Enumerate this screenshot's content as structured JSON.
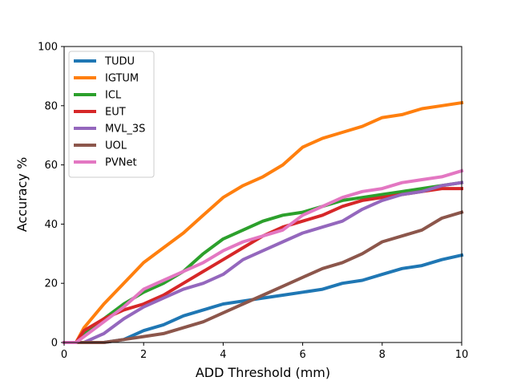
{
  "chart_data": {
    "type": "line",
    "title": "",
    "xlabel": "ADD Threshold (mm)",
    "ylabel": "Accuracy %",
    "xlim": [
      0,
      10
    ],
    "ylim": [
      0,
      100
    ],
    "xticks": [
      0,
      2,
      4,
      6,
      8,
      10
    ],
    "yticks": [
      0,
      20,
      40,
      60,
      80,
      100
    ],
    "grid": false,
    "legend_position": "top-left",
    "series": [
      {
        "name": "TUDU",
        "color": "#1f77b4",
        "x": [
          0,
          1,
          1.5,
          2,
          2.5,
          3,
          3.5,
          4,
          4.5,
          5,
          5.5,
          6,
          6.5,
          7,
          7.5,
          8,
          8.5,
          9,
          9.5,
          10
        ],
        "y": [
          0,
          0,
          1,
          4,
          6,
          9,
          11,
          13,
          14,
          15,
          16,
          17,
          18,
          20,
          21,
          23,
          25,
          26,
          28,
          29.5
        ]
      },
      {
        "name": "IGTUM",
        "color": "#ff7f0e",
        "x": [
          0,
          0.3,
          0.5,
          1,
          1.5,
          2,
          2.5,
          3,
          3.5,
          4,
          4.5,
          5,
          5.5,
          6,
          6.5,
          7,
          7.5,
          8,
          8.5,
          9,
          9.5,
          10
        ],
        "y": [
          0,
          0,
          5,
          13,
          20,
          27,
          32,
          37,
          43,
          49,
          53,
          56,
          60,
          66,
          69,
          71,
          73,
          76,
          77,
          79,
          80,
          81
        ]
      },
      {
        "name": "ICL",
        "color": "#2ca02c",
        "x": [
          0,
          0.3,
          0.5,
          1,
          1.5,
          2,
          2.5,
          3,
          3.5,
          4,
          4.5,
          5,
          5.5,
          6,
          6.5,
          7,
          7.5,
          8,
          8.5,
          9,
          9.5,
          10
        ],
        "y": [
          0,
          0,
          3,
          8,
          13,
          17,
          20,
          24,
          30,
          35,
          38,
          41,
          43,
          44,
          46,
          48,
          49,
          50,
          51,
          52,
          53,
          54
        ]
      },
      {
        "name": "EUT",
        "color": "#d62728",
        "x": [
          0,
          0.3,
          0.5,
          1,
          1.5,
          2,
          2.5,
          3,
          3.5,
          4,
          4.5,
          5,
          5.5,
          6,
          6.5,
          7,
          7.5,
          8,
          8.5,
          9,
          9.5,
          10
        ],
        "y": [
          0,
          0,
          4,
          8,
          11,
          13,
          16,
          20,
          24,
          28,
          32,
          36,
          39,
          41,
          43,
          46,
          48,
          49,
          50,
          51,
          52,
          52
        ]
      },
      {
        "name": "MVL_3S",
        "color": "#9467bd",
        "x": [
          0,
          0.5,
          1,
          1.5,
          2,
          2.5,
          3,
          3.5,
          4,
          4.5,
          5,
          5.5,
          6,
          6.5,
          7,
          7.5,
          8,
          8.5,
          9,
          9.5,
          10
        ],
        "y": [
          0,
          0,
          3,
          8,
          12,
          15,
          18,
          20,
          23,
          28,
          31,
          34,
          37,
          39,
          41,
          45,
          48,
          50,
          51,
          53,
          54
        ]
      },
      {
        "name": "UOL",
        "color": "#8c564b",
        "x": [
          0,
          1,
          1.5,
          2,
          2.5,
          3,
          3.5,
          4,
          4.5,
          5,
          5.5,
          6,
          6.5,
          7,
          7.5,
          8,
          8.5,
          9,
          9.5,
          10
        ],
        "y": [
          0,
          0,
          1,
          2,
          3,
          5,
          7,
          10,
          13,
          16,
          19,
          22,
          25,
          27,
          30,
          34,
          36,
          38,
          42,
          44
        ]
      },
      {
        "name": "PVNet",
        "color": "#e377c2",
        "x": [
          0,
          0.3,
          0.5,
          1,
          1.5,
          2,
          2.5,
          3,
          3.5,
          4,
          4.5,
          5,
          5.5,
          6,
          6.5,
          7,
          7.5,
          8,
          8.5,
          9,
          9.5,
          10
        ],
        "y": [
          0,
          0,
          2,
          7,
          12,
          18,
          21,
          24,
          27,
          31,
          34,
          36,
          38,
          43,
          46,
          49,
          51,
          52,
          54,
          55,
          56,
          58
        ]
      }
    ]
  }
}
